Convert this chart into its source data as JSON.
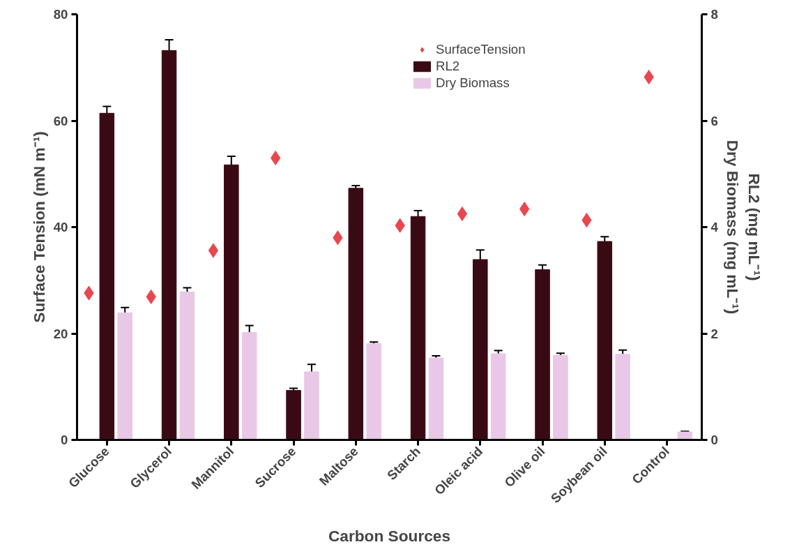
{
  "chart_data": {
    "type": "bar",
    "xlabel": "Carbon Sources",
    "ylabel": "Surface Tension (mN m⁻¹)",
    "y2label": "RL2 (mg mL⁻¹)\nDry Biomass (mg mL⁻¹)",
    "categories": [
      "Glucose",
      "Glycerol",
      "Mannitol",
      "Sucrose",
      "Maltose",
      "Starch",
      "Oleic acid",
      "Olive oil",
      "Soybean oil",
      "Control"
    ],
    "series": [
      {
        "name": "SurfaceTension",
        "type": "scatter",
        "color": "#e8474f",
        "values": [
          27.6,
          26.9,
          35.6,
          53.0,
          38.0,
          40.3,
          42.5,
          43.4,
          41.3,
          68.2
        ]
      },
      {
        "name": "RL2",
        "axis": "y2",
        "color": "#3a0a14",
        "values": [
          6.14,
          7.32,
          5.17,
          0.93,
          4.73,
          4.2,
          3.39,
          3.2,
          3.73,
          0
        ],
        "errors": [
          0.13,
          0.2,
          0.16,
          0.04,
          0.05,
          0.11,
          0.18,
          0.09,
          0.09,
          null
        ]
      },
      {
        "name": "Dry Biomass",
        "axis": "y2",
        "color": "#e8c8e6",
        "values": [
          2.39,
          2.78,
          2.02,
          1.28,
          1.81,
          1.54,
          1.62,
          1.59,
          1.61,
          0.15
        ],
        "errors": [
          0.1,
          0.08,
          0.13,
          0.14,
          0.03,
          0.04,
          0.06,
          0.04,
          0.08,
          0.01
        ]
      }
    ],
    "ylim": [
      0,
      80
    ],
    "yticks": [
      0,
      20,
      40,
      60,
      80
    ],
    "y2lim": [
      0,
      8
    ],
    "y2ticks": [
      0,
      2,
      4,
      6,
      8
    ],
    "marker": "diamond",
    "legend": "top",
    "grid": false
  }
}
